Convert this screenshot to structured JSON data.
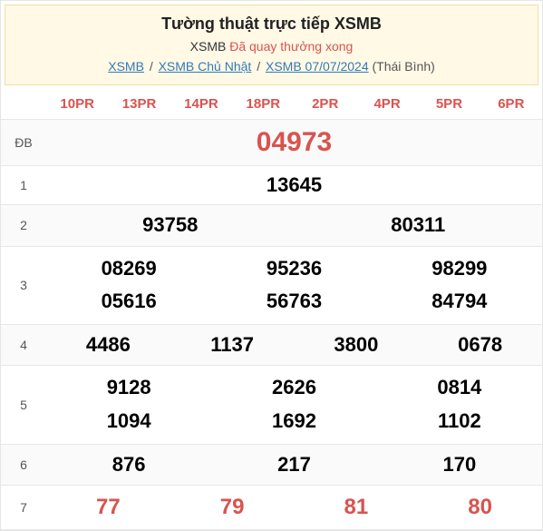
{
  "header": {
    "title": "Tường thuật trực tiếp XSMB",
    "subtitle_a": "XSMB",
    "subtitle_b": "Đã quay thưởng xong",
    "breadcrumb": {
      "link1": "XSMB",
      "link2": "XSMB Chủ Nhật",
      "link3": "XSMB 07/07/2024",
      "trail": "(Thái Bình)"
    }
  },
  "pr_headers": [
    "10PR",
    "13PR",
    "14PR",
    "18PR",
    "2PR",
    "4PR",
    "5PR",
    "6PR"
  ],
  "prizes": {
    "db": {
      "label": "ĐB",
      "value": "04973"
    },
    "p1": {
      "label": "1",
      "value": "13645"
    },
    "p2": {
      "label": "2",
      "values": [
        "93758",
        "80311"
      ]
    },
    "p3": {
      "label": "3",
      "row1": [
        "08269",
        "95236",
        "98299"
      ],
      "row2": [
        "05616",
        "56763",
        "84794"
      ]
    },
    "p4": {
      "label": "4",
      "values": [
        "4486",
        "1137",
        "3800",
        "0678"
      ]
    },
    "p5": {
      "label": "5",
      "row1": [
        "9128",
        "2626",
        "0814"
      ],
      "row2": [
        "1094",
        "1692",
        "1102"
      ]
    },
    "p6": {
      "label": "6",
      "values": [
        "876",
        "217",
        "170"
      ]
    },
    "p7": {
      "label": "7",
      "values": [
        "77",
        "79",
        "81",
        "80"
      ]
    }
  },
  "colors": {
    "red": "#d9534f",
    "link": "#337ab7",
    "header_bg": "#fff9e6",
    "border": "#e7e7e7",
    "zebra": "#fafafa"
  }
}
